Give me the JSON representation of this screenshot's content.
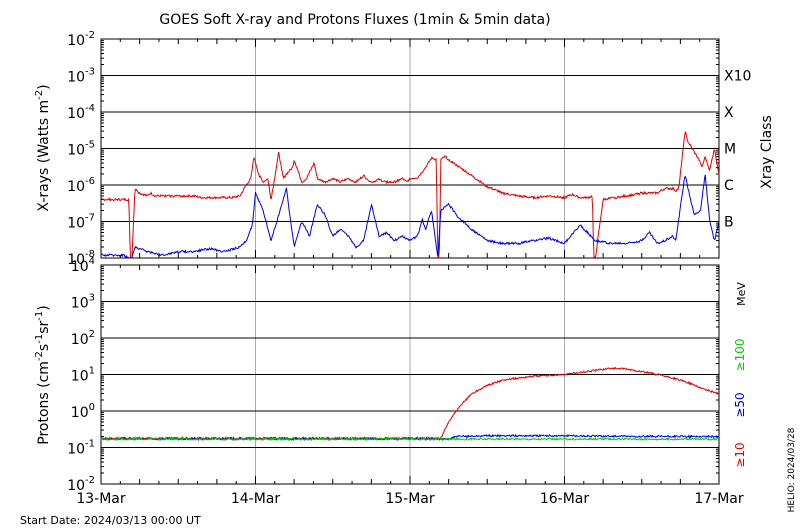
{
  "title": "GOES Soft X-ray and Protons Fluxes   (1min & 5min data)",
  "start_date": "Start Date: 2024/03/13 00:00 UT",
  "helio_stamp": "HELIO: 2024/03/28",
  "colors": {
    "xray_long": "#dd0000",
    "xray_short": "#0000dd",
    "p10": "#dd0000",
    "p50": "#0000dd",
    "p100": "#00cc00",
    "grid": "#000000",
    "day_line": "#aaaaaa"
  },
  "chart_data": [
    {
      "type": "line",
      "panel": "xray",
      "ylabel_main": "X-rays (Watts m",
      "ylabel_sup": "-2",
      "ylabel_end": ")",
      "yscale": "log",
      "ylim_exp": [
        -8,
        -2
      ],
      "ytick_exps": [
        -2,
        -3,
        -4,
        -5,
        -6,
        -7,
        -8
      ],
      "right_axis_label": "Xray Class",
      "classes": [
        {
          "label": "X10",
          "exp": -3
        },
        {
          "label": "X",
          "exp": -4
        },
        {
          "label": "M",
          "exp": -5
        },
        {
          "label": "C",
          "exp": -6
        },
        {
          "label": "B",
          "exp": -7
        }
      ],
      "xlim_days": [
        0,
        4
      ],
      "series": [
        {
          "key": "long",
          "x": [
            0,
            0.15,
            0.18,
            0.19,
            0.2,
            0.22,
            0.25,
            0.3,
            0.32,
            0.35,
            0.5,
            0.6,
            0.65,
            0.75,
            0.85,
            0.9,
            0.94,
            0.97,
            0.99,
            1.02,
            1.05,
            1.08,
            1.1,
            1.12,
            1.15,
            1.18,
            1.2,
            1.24,
            1.25,
            1.3,
            1.33,
            1.38,
            1.4,
            1.45,
            1.5,
            1.55,
            1.6,
            1.65,
            1.7,
            1.75,
            1.8,
            1.85,
            1.9,
            1.95,
            1.98,
            2.0,
            2.05,
            2.1,
            2.14,
            2.17,
            2.18,
            2.19,
            2.2,
            2.23,
            2.25,
            2.3,
            2.4,
            2.5,
            2.6,
            2.7,
            2.8,
            2.9,
            3.0,
            3.05,
            3.1,
            3.15,
            3.18,
            3.19,
            3.2,
            3.25,
            3.4,
            3.5,
            3.6,
            3.65,
            3.7,
            3.72,
            3.74,
            3.78,
            3.8,
            3.84,
            3.87,
            3.89,
            3.91,
            3.94,
            3.97,
            4.0
          ],
          "values": [
            4e-07,
            4e-07,
            4e-07,
            1e-08,
            1e-08,
            8e-07,
            6e-07,
            5e-07,
            6e-07,
            5e-07,
            5e-07,
            5e-07,
            4.5e-07,
            4.5e-07,
            4.5e-07,
            5e-07,
            1e-06,
            1.5e-06,
            6e-06,
            2e-06,
            1.2e-06,
            1.5e-06,
            4e-07,
            1.2e-06,
            8e-06,
            1.5e-06,
            2e-06,
            3e-06,
            5e-06,
            1.2e-06,
            1.5e-06,
            4e-06,
            1.5e-06,
            1.2e-06,
            1.5e-06,
            1.2e-06,
            1.5e-06,
            1.2e-06,
            1.8e-06,
            1.2e-06,
            1.4e-06,
            1.2e-06,
            1.2e-06,
            1.5e-06,
            1.2e-06,
            1.5e-06,
            1.6e-06,
            3e-06,
            5.5e-06,
            5e-06,
            1e-08,
            1e-08,
            5e-06,
            6e-06,
            5e-06,
            3.5e-06,
            1.8e-06,
            9e-07,
            6e-07,
            5e-07,
            4.5e-07,
            5e-07,
            4.5e-07,
            5.5e-07,
            4.5e-07,
            4.5e-07,
            5e-07,
            1e-08,
            1e-08,
            4e-07,
            5e-07,
            6e-07,
            6e-07,
            8e-07,
            8e-07,
            7e-07,
            8e-07,
            3e-05,
            1.5e-05,
            8e-06,
            5e-06,
            3e-06,
            6e-06,
            2.5e-06,
            1e-05,
            2e-06
          ]
        },
        {
          "key": "short",
          "x": [
            0,
            0.15,
            0.18,
            0.2,
            0.22,
            0.3,
            0.4,
            0.5,
            0.6,
            0.7,
            0.8,
            0.9,
            0.94,
            0.98,
            1.0,
            1.05,
            1.1,
            1.15,
            1.2,
            1.25,
            1.3,
            1.35,
            1.4,
            1.45,
            1.5,
            1.55,
            1.6,
            1.65,
            1.7,
            1.75,
            1.8,
            1.85,
            1.9,
            1.95,
            2.0,
            2.05,
            2.08,
            2.1,
            2.14,
            2.18,
            2.2,
            2.25,
            2.3,
            2.4,
            2.5,
            2.6,
            2.7,
            2.8,
            2.9,
            3.0,
            3.1,
            3.2,
            3.3,
            3.4,
            3.5,
            3.55,
            3.6,
            3.65,
            3.7,
            3.72,
            3.78,
            3.8,
            3.84,
            3.88,
            3.91,
            3.94,
            3.97,
            4.0
          ],
          "values": [
            1.2e-08,
            1.2e-08,
            1e-08,
            1e-08,
            2e-08,
            1.5e-08,
            1.2e-08,
            1.5e-08,
            1.5e-08,
            1.8e-08,
            1.5e-08,
            2e-08,
            3e-08,
            8e-08,
            6e-07,
            2e-07,
            3e-08,
            1.5e-07,
            8e-07,
            2e-08,
            1e-07,
            4e-08,
            3e-07,
            1.5e-07,
            4e-08,
            6e-08,
            4e-08,
            2e-08,
            3e-08,
            3e-07,
            4e-08,
            5e-08,
            3e-08,
            4e-08,
            3e-08,
            4e-08,
            1.2e-07,
            6e-08,
            2e-07,
            1e-08,
            2e-07,
            3e-07,
            1.5e-07,
            6e-08,
            3e-08,
            2.5e-08,
            2.5e-08,
            3e-08,
            3.5e-08,
            2.5e-08,
            8e-08,
            3e-08,
            2.5e-08,
            2.5e-08,
            3e-08,
            5e-08,
            2.5e-08,
            3e-08,
            4e-08,
            3e-08,
            2e-06,
            8e-07,
            1.5e-07,
            2e-07,
            2e-06,
            1e-07,
            3e-08,
            1e-07
          ]
        }
      ]
    },
    {
      "type": "line",
      "panel": "protons",
      "ylabel_text": "Protons (cm",
      "ylabel_sup1": "-2",
      "ylabel_mid": "s",
      "ylabel_sup2": "-1",
      "ylabel_mid2": "sr",
      "ylabel_sup3": "-1",
      "ylabel_end": ")",
      "yscale": "log",
      "ylim_exp": [
        -2,
        4
      ],
      "ytick_labels": [
        {
          "base": "10",
          "sup": "4",
          "exp": 4
        },
        {
          "base": "10",
          "sup": "3",
          "exp": 3
        },
        {
          "base": "10",
          "sup": "2",
          "exp": 2
        },
        {
          "base": "10",
          "sup": "1",
          "exp": 1
        },
        {
          "base": "10",
          "sup": "0",
          "exp": 0
        },
        {
          "base": "10",
          "sup": "-1",
          "exp": -1
        },
        {
          "base": "10",
          "sup": "-2",
          "exp": -2
        }
      ],
      "threshold": 10,
      "energy_unit": "MeV",
      "legend": [
        {
          "label": "≥100",
          "color": "#00cc00"
        },
        {
          "label": "≥50",
          "color": "#0000dd"
        },
        {
          "label": "≥10",
          "color": "#dd0000"
        }
      ],
      "xlim_days": [
        0,
        4
      ],
      "series": [
        {
          "key": "p10",
          "x": [
            0,
            1.0,
            2.0,
            2.2,
            2.25,
            2.3,
            2.35,
            2.4,
            2.5,
            2.6,
            2.7,
            2.8,
            3.0,
            3.2,
            3.3,
            3.4,
            3.5,
            3.6,
            3.7,
            3.8,
            3.9,
            4.0
          ],
          "values": [
            0.18,
            0.18,
            0.18,
            0.18,
            0.5,
            1.0,
            1.8,
            3.0,
            5.0,
            7.0,
            8.0,
            9.0,
            10.0,
            13.0,
            15.0,
            14.0,
            12.0,
            10.0,
            8.0,
            6.0,
            4.0,
            3.0
          ]
        },
        {
          "key": "p50",
          "x": [
            0,
            2.0,
            2.25,
            2.3,
            2.5,
            3.0,
            3.5,
            4.0
          ],
          "values": [
            0.17,
            0.17,
            0.17,
            0.2,
            0.21,
            0.21,
            0.2,
            0.2
          ]
        },
        {
          "key": "p100",
          "x": [
            0,
            2.0,
            4.0
          ],
          "values": [
            0.17,
            0.17,
            0.17
          ]
        }
      ]
    }
  ],
  "x_axis": {
    "labels": [
      "13-Mar",
      "14-Mar",
      "15-Mar",
      "16-Mar",
      "17-Mar"
    ],
    "days": [
      0,
      1,
      2,
      3,
      4
    ]
  }
}
